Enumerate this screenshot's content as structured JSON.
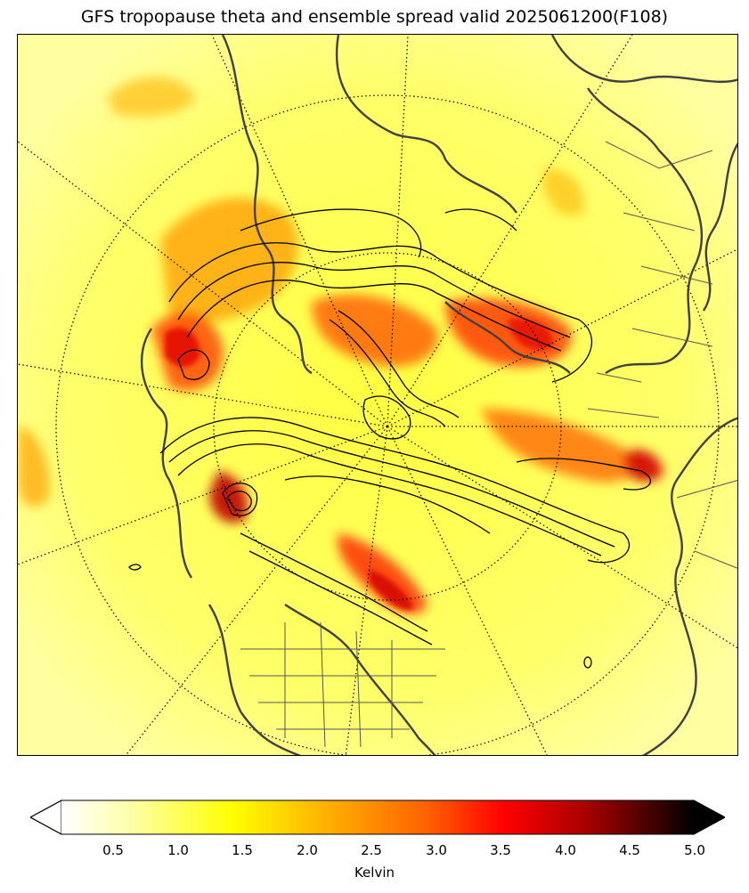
{
  "title": "GFS tropopause theta and ensemble spread valid 2025061200(F108)",
  "colorbar": {
    "label": "Kelvin",
    "ticks": [
      "0.5",
      "1.0",
      "1.5",
      "2.0",
      "2.5",
      "3.0",
      "3.5",
      "4.0",
      "4.5",
      "5.0"
    ],
    "range": [
      0,
      5.0
    ],
    "colormap": "hot_r",
    "extend": "both"
  },
  "colors": {
    "background_low": "#ffff80",
    "mid": "#ff8000",
    "high": "#e00000",
    "contours": "#000000",
    "coastlines": "#404040"
  }
}
